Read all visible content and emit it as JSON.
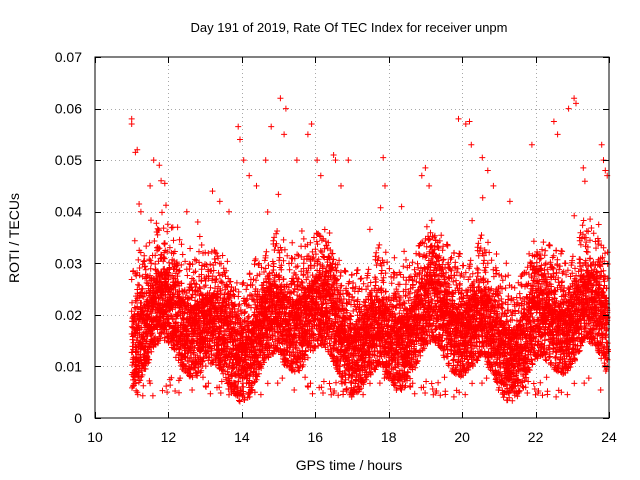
{
  "chart_data": {
    "type": "scatter",
    "title": "Day 191 of 2019, Rate Of TEC Index for receiver unpm",
    "xlabel": "GPS time / hours",
    "ylabel": "ROTI / TECUs",
    "xlim": [
      10,
      24
    ],
    "ylim": [
      0,
      0.07
    ],
    "xticks": [
      10,
      12,
      14,
      16,
      18,
      20,
      22,
      24
    ],
    "yticks": [
      0,
      0.01,
      0.02,
      0.03,
      0.04,
      0.05,
      0.06,
      0.07
    ],
    "xtick_labels": [
      "10",
      "12",
      "14",
      "16",
      "18",
      "20",
      "22",
      "24"
    ],
    "ytick_labels": [
      "0",
      "0.01",
      "0.02",
      "0.03",
      "0.04",
      "0.05",
      "0.06",
      "0.07"
    ],
    "grid": true,
    "marker": "+",
    "color": "#ff0000",
    "series": [
      {
        "name": "ROTI",
        "x": [
          11.0,
          11.0,
          11.1,
          11.15,
          11.2,
          11.25,
          11.5,
          11.6,
          11.75,
          11.8,
          11.9,
          12.25,
          12.5,
          12.8,
          13.2,
          13.4,
          13.65,
          13.9,
          13.95,
          14.05,
          14.2,
          14.4,
          14.65,
          14.8,
          15.05,
          15.15,
          15.2,
          15.5,
          15.8,
          15.9,
          16.05,
          16.15,
          16.5,
          16.55,
          16.7,
          16.9,
          17.85,
          17.9,
          18.35,
          18.9,
          19.0,
          19.1,
          19.9,
          20.1,
          20.2,
          20.25,
          20.55,
          20.7,
          20.85,
          21.3,
          21.9,
          22.5,
          22.6,
          22.9,
          23.05,
          23.1,
          23.3,
          23.8,
          23.85,
          23.9,
          23.95
        ],
        "y": [
          0.058,
          0.057,
          0.0515,
          0.052,
          0.0415,
          0.04,
          0.045,
          0.05,
          0.049,
          0.046,
          0.0455,
          0.037,
          0.04,
          0.038,
          0.044,
          0.042,
          0.04,
          0.0565,
          0.054,
          0.05,
          0.047,
          0.045,
          0.05,
          0.0565,
          0.062,
          0.055,
          0.06,
          0.05,
          0.055,
          0.057,
          0.05,
          0.047,
          0.051,
          0.05,
          0.045,
          0.05,
          0.0505,
          0.045,
          0.041,
          0.047,
          0.0485,
          0.045,
          0.058,
          0.057,
          0.0575,
          0.053,
          0.0505,
          0.048,
          0.045,
          0.042,
          0.053,
          0.0575,
          0.055,
          0.06,
          0.062,
          0.061,
          0.0485,
          0.053,
          0.05,
          0.048,
          0.047
        ]
      }
    ]
  }
}
